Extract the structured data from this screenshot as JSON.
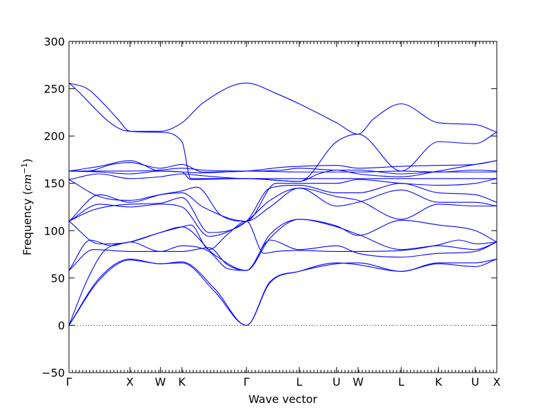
{
  "chart_data": {
    "type": "line",
    "xlabel": "Wave vector",
    "ylabel": "Frequency",
    "ylabel_unit": "cm",
    "ylabel_unit_exp": "−1",
    "ylim": [
      -50,
      300
    ],
    "yticks": [
      -50,
      0,
      50,
      100,
      150,
      200,
      250,
      300
    ],
    "zero_line": true,
    "kpath": [
      {
        "label": "Γ",
        "x": 0.0
      },
      {
        "label": "X",
        "x": 1.0
      },
      {
        "label": "W",
        "x": 1.5
      },
      {
        "label": "K",
        "x": 1.854
      },
      {
        "label": "Γ",
        "x": 2.914
      },
      {
        "label": "L",
        "x": 3.78
      },
      {
        "label": "U",
        "x": 4.393
      },
      {
        "label": "W",
        "x": 4.747
      },
      {
        "label": "L",
        "x": 5.454
      },
      {
        "label": "K",
        "x": 6.067
      },
      {
        "label": "U",
        "x": 6.67
      },
      {
        "label": "X",
        "x": 7.024
      }
    ],
    "series": [
      {
        "values": [
          [
            0,
            0
          ],
          [
            0.5,
            48
          ],
          [
            1.0,
            69
          ],
          [
            1.5,
            65
          ],
          [
            1.854,
            66
          ],
          [
            2.4,
            35
          ],
          [
            2.914,
            0
          ],
          [
            3.3,
            45
          ],
          [
            3.78,
            57
          ],
          [
            4.393,
            66
          ],
          [
            4.747,
            64
          ],
          [
            5.454,
            57
          ],
          [
            6.067,
            66
          ],
          [
            6.67,
            66
          ],
          [
            7.024,
            70
          ]
        ]
      },
      {
        "values": [
          [
            0,
            0
          ],
          [
            0.5,
            50
          ],
          [
            1.0,
            70
          ],
          [
            1.5,
            65
          ],
          [
            1.854,
            67
          ],
          [
            2.4,
            38
          ],
          [
            2.914,
            0
          ],
          [
            3.3,
            46
          ],
          [
            3.78,
            57
          ],
          [
            4.393,
            65
          ],
          [
            4.747,
            66
          ],
          [
            5.454,
            57
          ],
          [
            6.067,
            65
          ],
          [
            6.67,
            62
          ],
          [
            7.024,
            70
          ]
        ]
      },
      {
        "values": [
          [
            0,
            0
          ],
          [
            0.3,
            48
          ],
          [
            0.6,
            80
          ],
          [
            1.0,
            88
          ],
          [
            1.5,
            98
          ],
          [
            1.854,
            104
          ],
          [
            2.0,
            106
          ],
          [
            2.3,
            80
          ],
          [
            2.6,
            96
          ],
          [
            2.914,
            110
          ],
          [
            3.2,
            76
          ],
          [
            3.4,
            78
          ],
          [
            3.78,
            79
          ],
          [
            4.393,
            78
          ],
          [
            4.747,
            78
          ],
          [
            5.454,
            79
          ],
          [
            6.067,
            85
          ],
          [
            6.4,
            90
          ],
          [
            6.7,
            86
          ],
          [
            7.024,
            88
          ]
        ]
      },
      {
        "values": [
          [
            0,
            58
          ],
          [
            0.35,
            90
          ],
          [
            0.7,
            84
          ],
          [
            1.0,
            88
          ],
          [
            1.5,
            78
          ],
          [
            1.854,
            78
          ],
          [
            2.3,
            82
          ],
          [
            2.6,
            64
          ],
          [
            2.914,
            58
          ],
          [
            3.3,
            90
          ],
          [
            3.78,
            80
          ],
          [
            4.393,
            84
          ],
          [
            4.747,
            76
          ],
          [
            5.454,
            72
          ],
          [
            6.067,
            76
          ],
          [
            6.67,
            78
          ],
          [
            7.024,
            88
          ]
        ]
      },
      {
        "values": [
          [
            0,
            58
          ],
          [
            0.4,
            80
          ],
          [
            1.0,
            78
          ],
          [
            1.5,
            78
          ],
          [
            1.854,
            84
          ],
          [
            2.3,
            78
          ],
          [
            2.6,
            60
          ],
          [
            2.914,
            58
          ],
          [
            3.3,
            92
          ],
          [
            3.78,
            112
          ],
          [
            4.393,
            104
          ],
          [
            4.747,
            96
          ],
          [
            5.454,
            80
          ],
          [
            6.067,
            84
          ],
          [
            6.67,
            80
          ],
          [
            7.024,
            88
          ]
        ]
      },
      {
        "values": [
          [
            0,
            110
          ],
          [
            0.5,
            86
          ],
          [
            1.0,
            88
          ],
          [
            1.5,
            98
          ],
          [
            1.854,
            104
          ],
          [
            2.4,
            74
          ],
          [
            2.914,
            58
          ],
          [
            3.3,
            96
          ],
          [
            3.78,
            112
          ],
          [
            4.393,
            105
          ],
          [
            4.747,
            95
          ],
          [
            5.454,
            111
          ],
          [
            6.067,
            106
          ],
          [
            6.67,
            100
          ],
          [
            7.024,
            88
          ]
        ]
      },
      {
        "values": [
          [
            0,
            110
          ],
          [
            0.5,
            128
          ],
          [
            1.0,
            125
          ],
          [
            1.5,
            128
          ],
          [
            1.854,
            125
          ],
          [
            2.3,
            94
          ],
          [
            2.914,
            110
          ],
          [
            3.3,
            132
          ],
          [
            3.78,
            145
          ],
          [
            4.393,
            136
          ],
          [
            4.747,
            132
          ],
          [
            5.454,
            112
          ],
          [
            6.067,
            128
          ],
          [
            6.67,
            126
          ],
          [
            7.024,
            126
          ]
        ]
      },
      {
        "values": [
          [
            0,
            110
          ],
          [
            0.4,
            122
          ],
          [
            1.0,
            128
          ],
          [
            1.5,
            129
          ],
          [
            1.854,
            135
          ],
          [
            2.3,
            98
          ],
          [
            2.914,
            110
          ],
          [
            3.3,
            145
          ],
          [
            3.78,
            148
          ],
          [
            4.393,
            140
          ],
          [
            4.747,
            140
          ],
          [
            5.454,
            150
          ],
          [
            6.067,
            140
          ],
          [
            6.67,
            138
          ],
          [
            7.024,
            130
          ]
        ]
      },
      {
        "values": [
          [
            0,
            110
          ],
          [
            0.5,
            138
          ],
          [
            1.0,
            130
          ],
          [
            1.5,
            138
          ],
          [
            1.854,
            142
          ],
          [
            2.1,
            146
          ],
          [
            2.5,
            116
          ],
          [
            2.914,
            110
          ],
          [
            3.3,
            125
          ],
          [
            3.78,
            145
          ],
          [
            4.393,
            126
          ],
          [
            4.747,
            130
          ],
          [
            5.454,
            143
          ],
          [
            6.067,
            130
          ],
          [
            6.67,
            130
          ],
          [
            7.024,
            126
          ]
        ]
      },
      {
        "values": [
          [
            0,
            154
          ],
          [
            0.5,
            136
          ],
          [
            1.0,
            132
          ],
          [
            1.5,
            138
          ],
          [
            1.854,
            140
          ],
          [
            2.2,
            125
          ],
          [
            2.914,
            110
          ],
          [
            3.4,
            150
          ],
          [
            3.78,
            150
          ],
          [
            4.393,
            150
          ],
          [
            4.747,
            154
          ],
          [
            5.454,
            150
          ],
          [
            6.067,
            148
          ],
          [
            6.67,
            150
          ],
          [
            7.024,
            155
          ]
        ]
      },
      {
        "values": [
          [
            0,
            154
          ],
          [
            0.5,
            160
          ],
          [
            1.0,
            155
          ],
          [
            1.5,
            157
          ],
          [
            1.854,
            160
          ],
          [
            2.2,
            158
          ],
          [
            2.914,
            155
          ],
          [
            3.78,
            155
          ],
          [
            4.393,
            155
          ],
          [
            4.747,
            155
          ],
          [
            5.454,
            155
          ],
          [
            6.067,
            155
          ],
          [
            6.67,
            155
          ],
          [
            7.024,
            155
          ]
        ]
      },
      {
        "values": [
          [
            0,
            163
          ],
          [
            0.5,
            163
          ],
          [
            1.0,
            163
          ],
          [
            1.5,
            164
          ],
          [
            1.854,
            166
          ],
          [
            2.2,
            164
          ],
          [
            2.914,
            163
          ],
          [
            3.5,
            164
          ],
          [
            3.78,
            166
          ],
          [
            4.393,
            164
          ],
          [
            4.747,
            164
          ],
          [
            5.454,
            160
          ],
          [
            6.067,
            162
          ],
          [
            6.67,
            162
          ],
          [
            7.024,
            162
          ]
        ]
      },
      {
        "values": [
          [
            0,
            163
          ],
          [
            0.3,
            163
          ],
          [
            0.7,
            170
          ],
          [
            1.0,
            172
          ],
          [
            1.5,
            166
          ],
          [
            1.854,
            170
          ],
          [
            2.2,
            162
          ],
          [
            2.914,
            163
          ],
          [
            3.5,
            167
          ],
          [
            3.78,
            168
          ],
          [
            4.393,
            169
          ],
          [
            4.747,
            166
          ],
          [
            5.454,
            168
          ],
          [
            6.067,
            169
          ],
          [
            6.67,
            170
          ],
          [
            7.024,
            174
          ]
        ]
      },
      {
        "values": [
          [
            0,
            163
          ],
          [
            0.5,
            168
          ],
          [
            1.0,
            174
          ],
          [
            1.5,
            163
          ],
          [
            1.854,
            162
          ],
          [
            2.0,
            154
          ],
          [
            2.914,
            155
          ],
          [
            3.78,
            152
          ],
          [
            4.1,
            160
          ],
          [
            4.393,
            164
          ],
          [
            4.747,
            160
          ],
          [
            5.454,
            157
          ],
          [
            6.067,
            163
          ],
          [
            6.67,
            170
          ],
          [
            7.024,
            174
          ]
        ]
      },
      {
        "values": [
          [
            0,
            163
          ],
          [
            0.5,
            162
          ],
          [
            1.0,
            160
          ],
          [
            1.5,
            163
          ],
          [
            1.854,
            162
          ],
          [
            2.2,
            161
          ],
          [
            2.914,
            163
          ],
          [
            3.78,
            162
          ],
          [
            4.393,
            162
          ],
          [
            4.747,
            162
          ],
          [
            5.454,
            163
          ],
          [
            6.067,
            162
          ],
          [
            6.67,
            164
          ],
          [
            7.024,
            163
          ]
        ]
      },
      {
        "values": [
          [
            0,
            256
          ],
          [
            0.3,
            250
          ],
          [
            0.6,
            232
          ],
          [
            0.8,
            218
          ],
          [
            1.0,
            205
          ],
          [
            1.5,
            204
          ],
          [
            1.854,
            194
          ],
          [
            2.0,
            155
          ],
          [
            2.914,
            155
          ],
          [
            3.78,
            152
          ],
          [
            4.393,
            194
          ],
          [
            4.747,
            202
          ],
          [
            5.454,
            163
          ],
          [
            6.067,
            194
          ],
          [
            6.67,
            192
          ],
          [
            7.024,
            204
          ]
        ]
      },
      {
        "values": [
          [
            0,
            256
          ],
          [
            1.0,
            205
          ],
          [
            1.5,
            205
          ],
          [
            1.854,
            214
          ],
          [
            2.2,
            235
          ],
          [
            2.914,
            256
          ],
          [
            3.4,
            245
          ],
          [
            3.78,
            234
          ],
          [
            4.393,
            214
          ],
          [
            4.747,
            202
          ],
          [
            5.0,
            218
          ],
          [
            5.454,
            234
          ],
          [
            6.067,
            214
          ],
          [
            6.67,
            212
          ],
          [
            7.024,
            204
          ]
        ]
      }
    ]
  }
}
